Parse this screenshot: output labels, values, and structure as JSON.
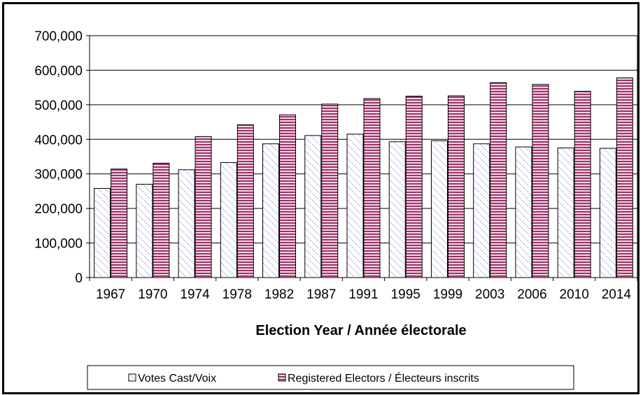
{
  "chart_data": {
    "type": "bar",
    "categories": [
      "1967",
      "1970",
      "1974",
      "1978",
      "1982",
      "1987",
      "1991",
      "1995",
      "1999",
      "2003",
      "2006",
      "2010",
      "2014"
    ],
    "series": [
      {
        "name": "Votes Cast/Voix",
        "values": [
          258000,
          270000,
          312000,
          333000,
          387000,
          411000,
          415000,
          393000,
          396000,
          387000,
          378000,
          375000,
          374000
        ],
        "pattern": "diagonal-light-blue"
      },
      {
        "name": "Registered Electors / Électeurs inscrits",
        "values": [
          314000,
          331000,
          408000,
          442000,
          471000,
          502000,
          518000,
          525000,
          526000,
          564000,
          559000,
          539000,
          578000
        ],
        "pattern": "horizontal-stripes-maroon"
      }
    ],
    "ylim": [
      0,
      700000
    ],
    "yticks": [
      0,
      100000,
      200000,
      300000,
      400000,
      500000,
      600000,
      700000
    ],
    "ytick_labels": [
      "0",
      "100,000",
      "200,000",
      "300,000",
      "400,000",
      "500,000",
      "600,000",
      "700,000"
    ],
    "xlabel": "Election Year / Année électorale",
    "ylabel": "",
    "title": "",
    "grid": "horizontal",
    "legend_position": "bottom",
    "colors": {
      "stripe": "#9b3468",
      "stripe_bg": "#f3d6e4",
      "diag": "#9ea9e6",
      "bar_border": "#000000"
    }
  }
}
